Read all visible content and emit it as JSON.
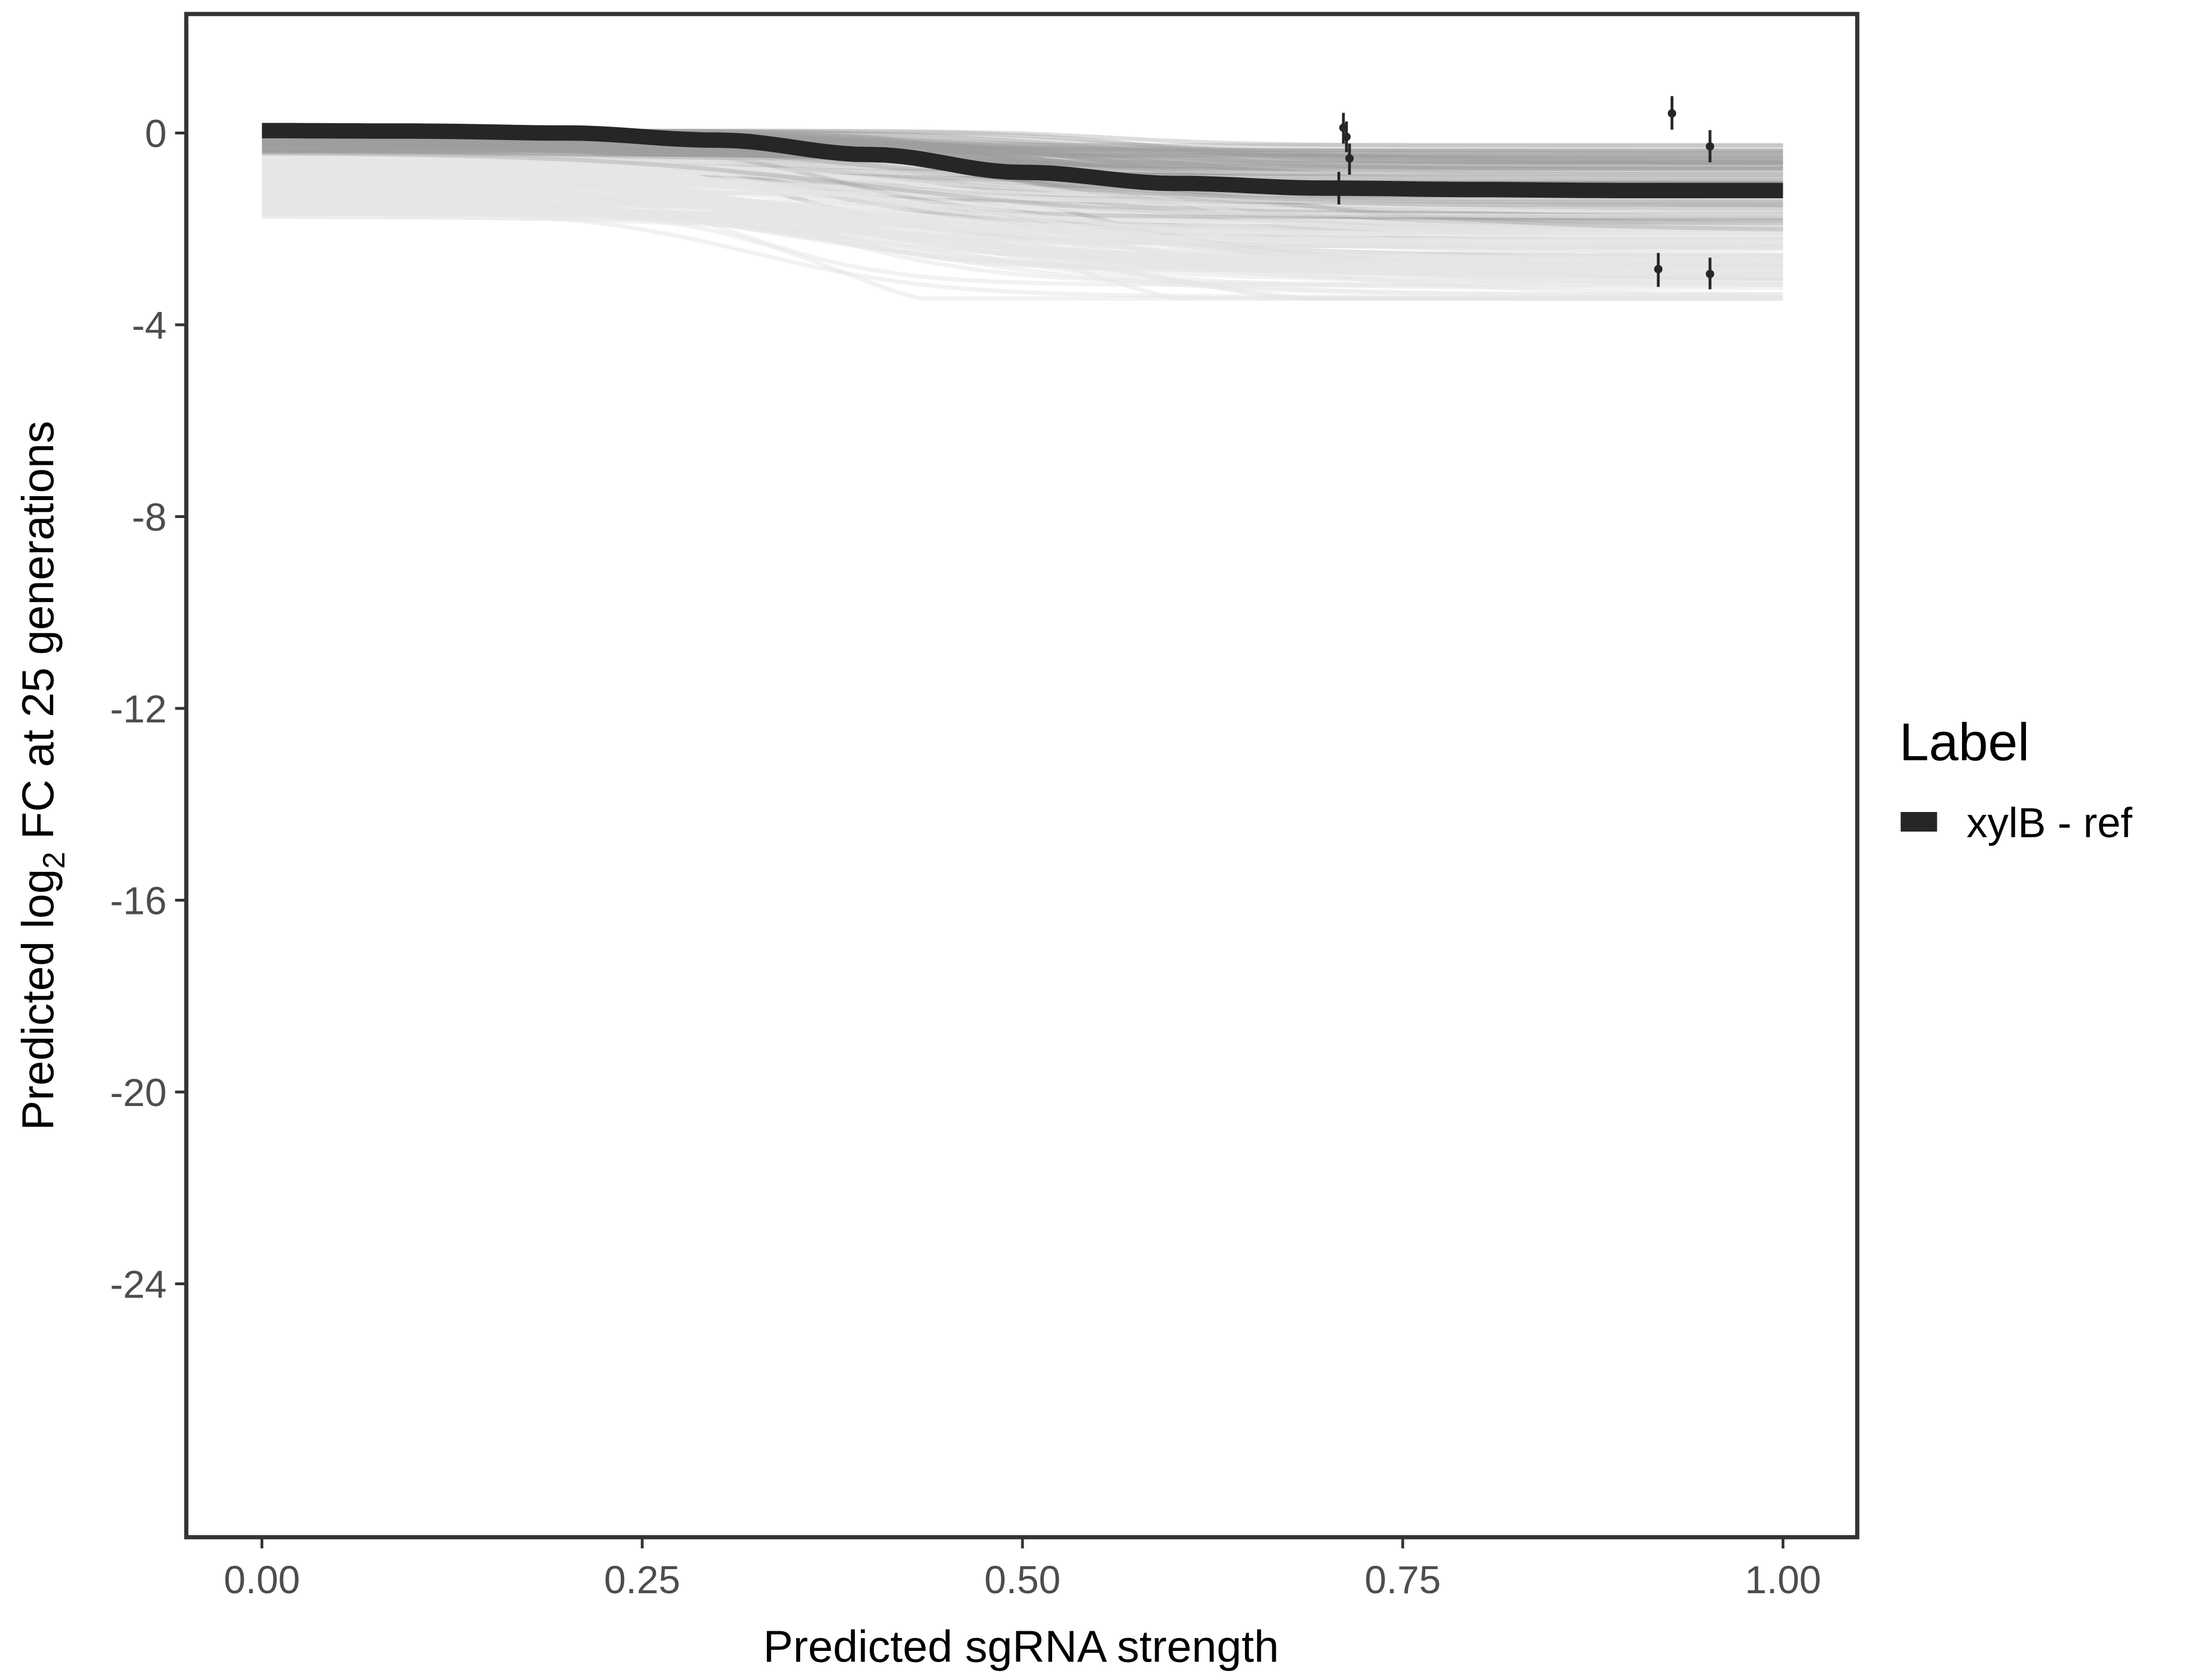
{
  "chart_data": {
    "type": "line",
    "xlabel": "Predicted sgRNA strength",
    "ylabel_parts": [
      "Predicted  log",
      "2",
      " FC at 25 generations"
    ],
    "xlim": [
      -0.05,
      1.05
    ],
    "ylim": [
      -29.3,
      2.5
    ],
    "xticks": [
      0,
      0.25,
      0.5,
      0.75,
      1
    ],
    "xtick_labels": [
      "0.00",
      "0.25",
      "0.50",
      "0.75",
      "1.00"
    ],
    "yticks": [
      0,
      -4,
      -8,
      -12,
      -16,
      -20,
      -24
    ],
    "ytick_labels": [
      "0",
      "-4",
      "-8",
      "-12",
      "-16",
      "-20",
      "-24"
    ],
    "grid": false,
    "legend": {
      "title": "Label",
      "placement": "right",
      "entries": [
        "xylB - ref"
      ]
    },
    "colors": {
      "fit": "#262626",
      "draws": "#9e9e9e",
      "points": "#262626",
      "frame": "#333333"
    },
    "fit_series": {
      "name": "xylB - ref",
      "x": [
        0,
        0.1,
        0.2,
        0.3,
        0.4,
        0.5,
        0.6,
        0.7,
        0.8,
        0.9,
        1.0
      ],
      "y": [
        0.05,
        0.04,
        0.0,
        -0.15,
        -0.45,
        -0.82,
        -1.05,
        -1.15,
        -1.18,
        -1.2,
        -1.2
      ]
    },
    "posterior_draws": {
      "band_at_x0": [
        -1.8,
        0.05
      ],
      "band_at_x1": [
        -3.4,
        0.05
      ]
    },
    "points": [
      {
        "x": 0.711,
        "y": 0.11,
        "ymin": -0.22,
        "ymax": 0.42
      },
      {
        "x": 0.713,
        "y": -0.08,
        "ymin": -0.4,
        "ymax": 0.24
      },
      {
        "x": 0.715,
        "y": -0.53,
        "ymin": -0.87,
        "ymax": -0.22
      },
      {
        "x": 0.708,
        "y": -1.14,
        "ymin": -1.49,
        "ymax": -0.81
      },
      {
        "x": 0.927,
        "y": 0.41,
        "ymin": 0.07,
        "ymax": 0.77
      },
      {
        "x": 0.952,
        "y": -0.28,
        "ymin": -0.61,
        "ymax": 0.06
      },
      {
        "x": 0.918,
        "y": -2.84,
        "ymin": -3.21,
        "ymax": -2.5
      },
      {
        "x": 0.952,
        "y": -2.94,
        "ymin": -3.26,
        "ymax": -2.6
      }
    ]
  }
}
